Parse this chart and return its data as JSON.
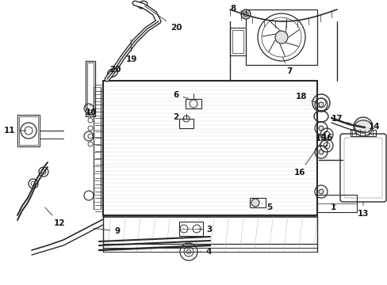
{
  "background_color": "#ffffff",
  "line_color": "#2a2a2a",
  "label_color": "#1a1a1a",
  "fig_width": 4.89,
  "fig_height": 3.6,
  "dpi": 100
}
